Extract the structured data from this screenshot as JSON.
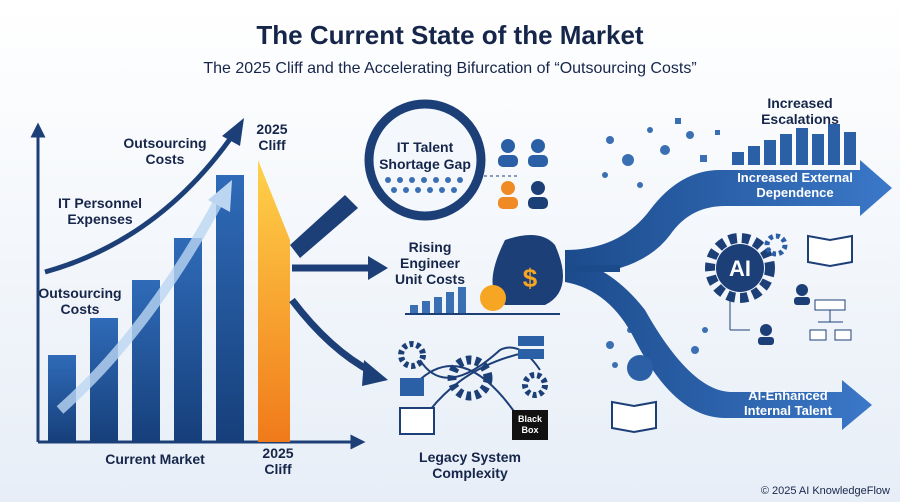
{
  "header": {
    "title": "The Current State of the Market",
    "subtitle": "The 2025 Cliff and the Accelerating Bifurcation of “Outsourcing Costs”"
  },
  "left_chart": {
    "top_arrow_label": {
      "lines": [
        "Outsourcing",
        "Costs"
      ]
    },
    "cliff_top_label": {
      "lines": [
        "2025",
        "Cliff"
      ]
    },
    "personnel_label": {
      "lines": [
        "IT Personnel",
        "Expenses"
      ]
    },
    "outsourcing_label": {
      "lines": [
        "Outsourcing",
        "Costs"
      ]
    },
    "x_label": "Current Market",
    "cliff_bottom_label": {
      "lines": [
        "2025",
        "Cliff"
      ]
    }
  },
  "middle": {
    "talent_gap": {
      "lines": [
        "IT Talent",
        "Shortage Gap"
      ]
    },
    "unit_costs": {
      "lines": [
        "Rising",
        "Engineer",
        "Unit Costs"
      ]
    },
    "legacy": {
      "lines": [
        "Legacy System",
        "Complexity"
      ]
    },
    "black_box": {
      "lines": [
        "Black",
        "Box"
      ]
    }
  },
  "right": {
    "escalations": {
      "lines": [
        "Increased",
        "Escalations"
      ]
    },
    "external": {
      "lines": [
        "Increased External",
        "Dependence"
      ]
    },
    "ai": "AI",
    "internal": {
      "lines": [
        "AI-Enhanced",
        "Internal Talent"
      ]
    }
  },
  "footer": "© 2025 AI KnowledgeFlow"
}
